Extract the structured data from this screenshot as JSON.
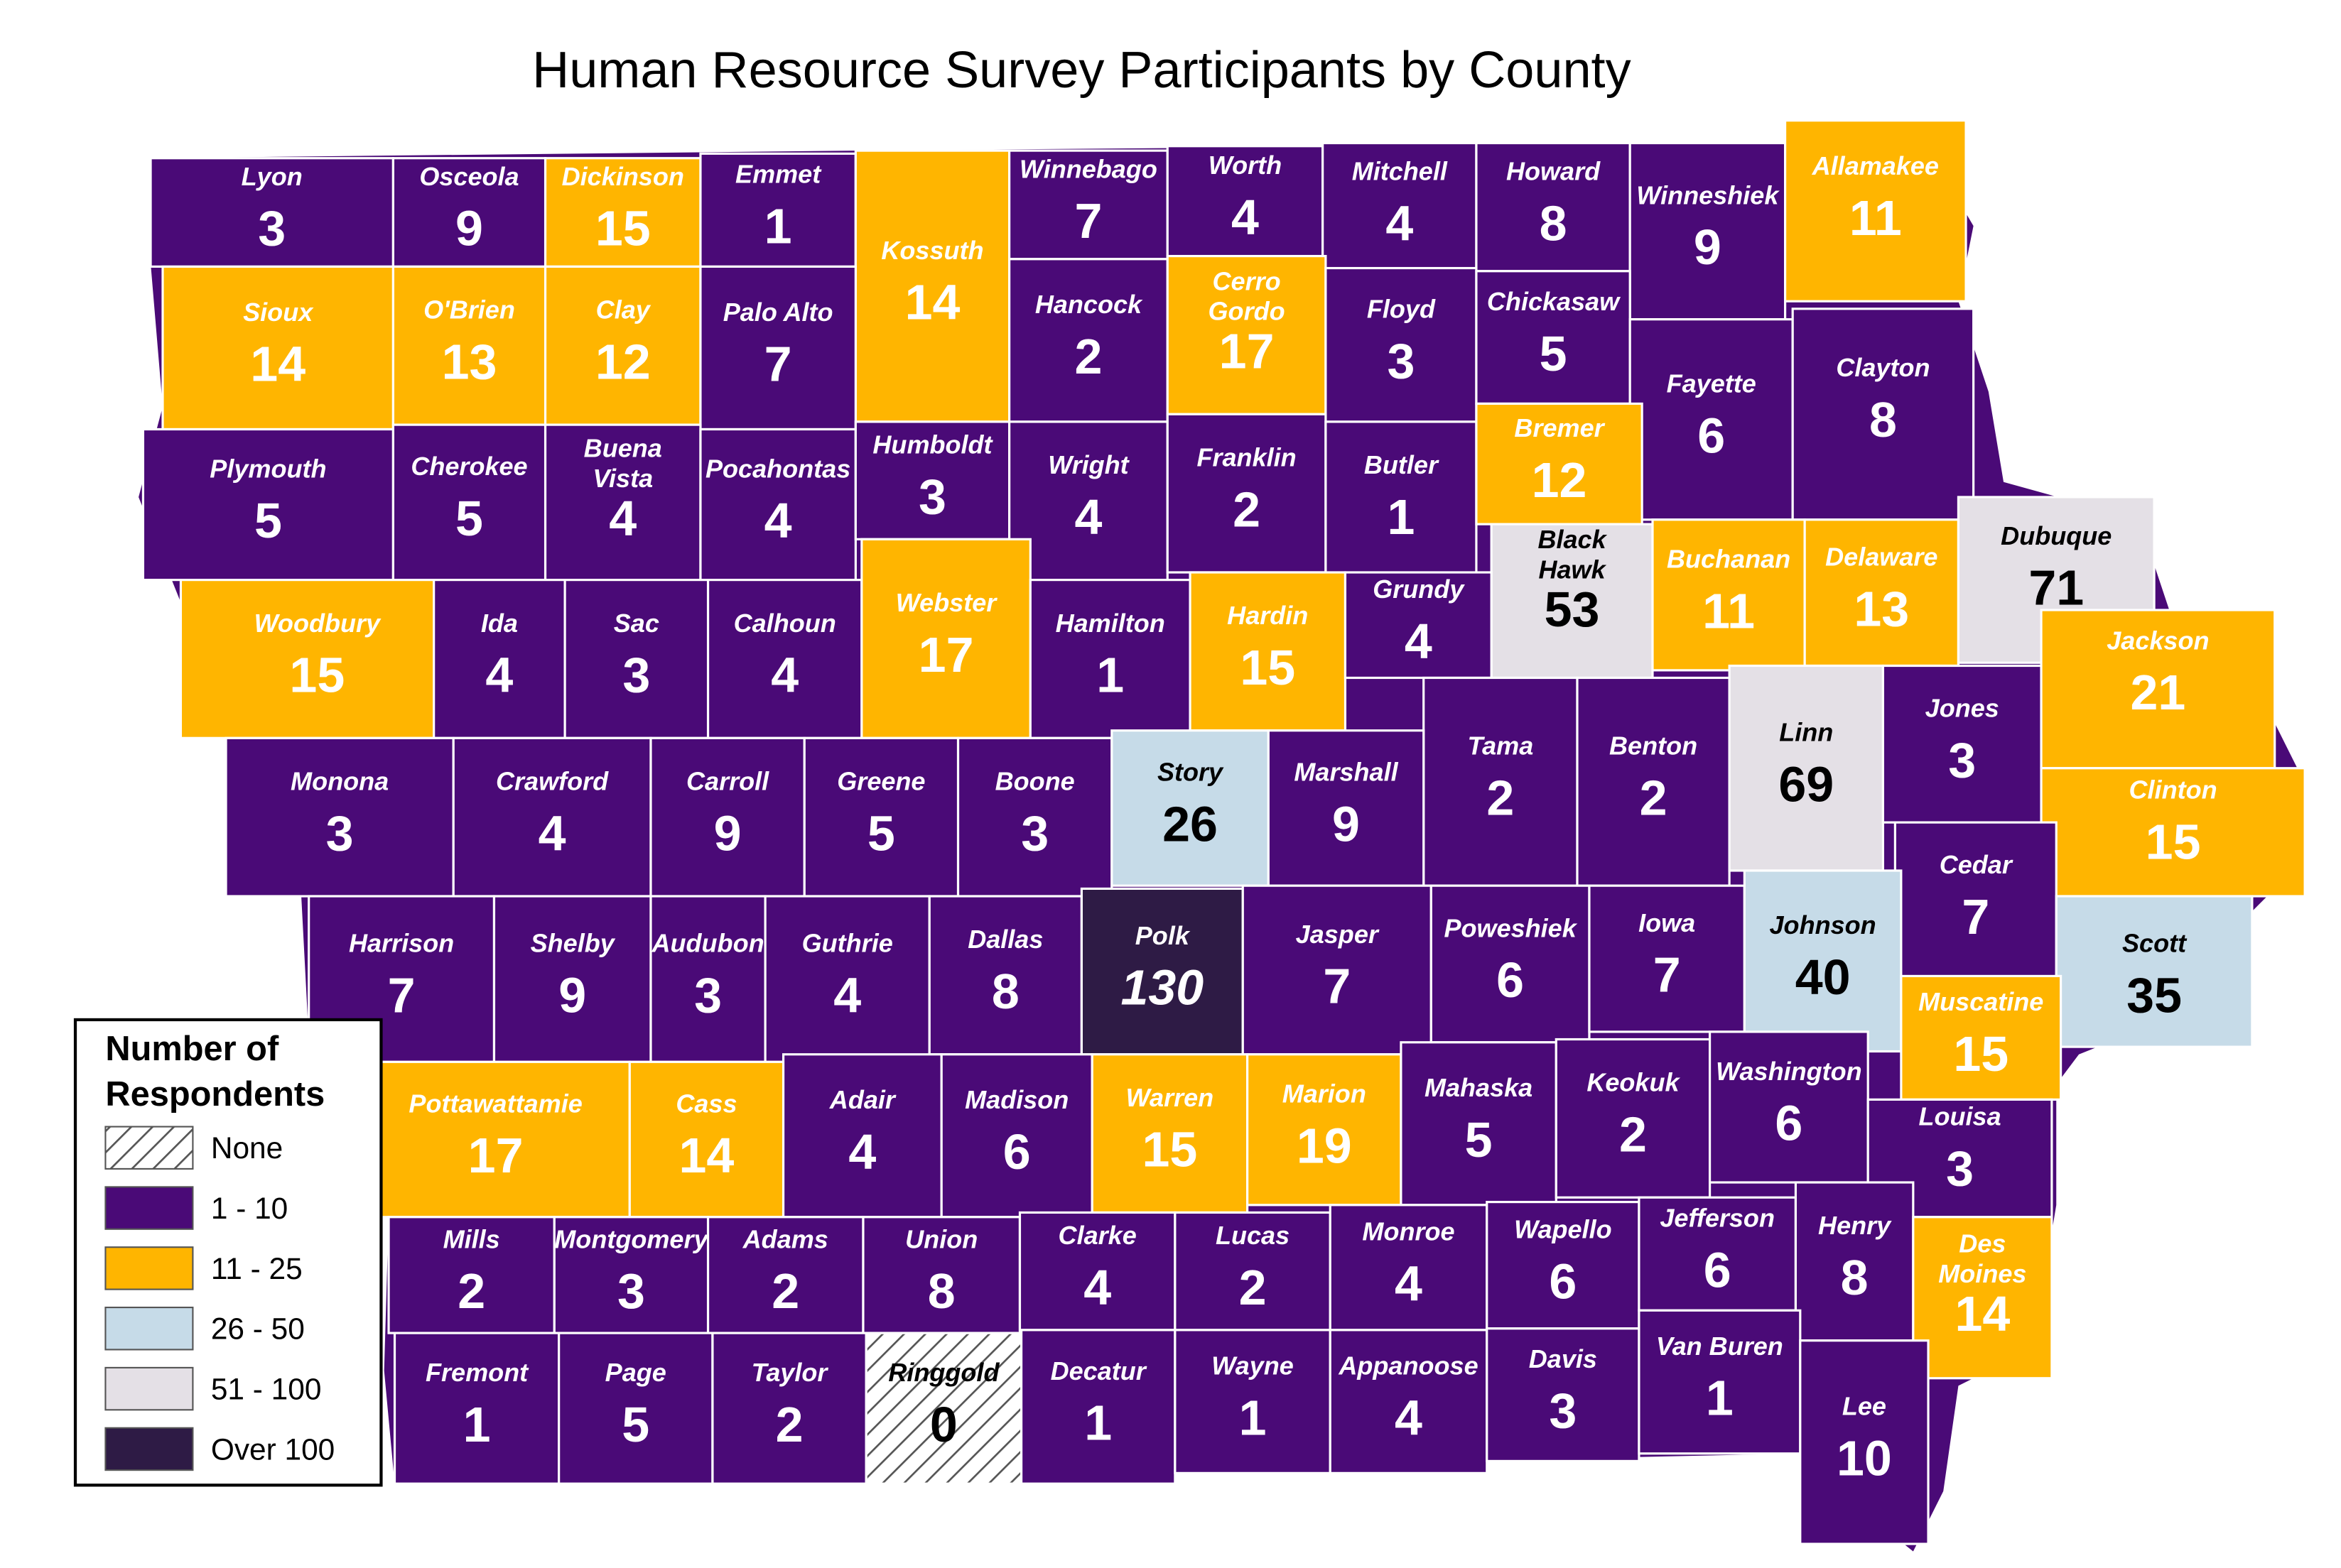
{
  "title": "Human Resource Survey Participants by County",
  "colors": {
    "none": "#ffffff",
    "low": "#4a0a77",
    "mid": "#ffb500",
    "light_blue": "#c6dbe8",
    "light_gray": "#e4e0e6",
    "dark": "#2e1b45",
    "border": "#ffffff",
    "outline": "#3a0a63",
    "text_on_dark": "#ffffff",
    "text_on_light": "#000000"
  },
  "legend": {
    "title_line1": "Number of",
    "title_line2": "Respondents",
    "items": [
      {
        "label": "None",
        "category": "none"
      },
      {
        "label": "1 - 10",
        "category": "low"
      },
      {
        "label": "11 - 25",
        "category": "mid"
      },
      {
        "label": "26 - 50",
        "category": "light_blue"
      },
      {
        "label": "51 - 100",
        "category": "light_gray"
      },
      {
        "label": "Over 100",
        "category": "dark"
      }
    ]
  },
  "counties": [
    {
      "name": "Lyon",
      "count": "3",
      "category": "low"
    },
    {
      "name": "Osceola",
      "count": "9",
      "category": "low"
    },
    {
      "name": "Dickinson",
      "count": "15",
      "category": "mid"
    },
    {
      "name": "Emmet",
      "count": "1",
      "category": "low"
    },
    {
      "name": "Kossuth",
      "count": "14",
      "category": "mid"
    },
    {
      "name": "Winnebago",
      "count": "7",
      "category": "low"
    },
    {
      "name": "Worth",
      "count": "4",
      "category": "low"
    },
    {
      "name": "Mitchell",
      "count": "4",
      "category": "low"
    },
    {
      "name": "Howard",
      "count": "8",
      "category": "low"
    },
    {
      "name": "Winneshiek",
      "count": "9",
      "category": "low"
    },
    {
      "name": "Allamakee",
      "count": "11",
      "category": "mid"
    },
    {
      "name": "Sioux",
      "count": "14",
      "category": "mid"
    },
    {
      "name": "O'Brien",
      "count": "13",
      "category": "mid"
    },
    {
      "name": "Clay",
      "count": "12",
      "category": "mid"
    },
    {
      "name": "Palo Alto",
      "count": "7",
      "category": "low"
    },
    {
      "name": "Hancock",
      "count": "2",
      "category": "low"
    },
    {
      "name": "Cerro Gordo",
      "name2": "Gordo",
      "name1": "Cerro",
      "count": "17",
      "category": "mid"
    },
    {
      "name": "Floyd",
      "count": "3",
      "category": "low"
    },
    {
      "name": "Chickasaw",
      "count": "5",
      "category": "low"
    },
    {
      "name": "Fayette",
      "count": "6",
      "category": "low"
    },
    {
      "name": "Clayton",
      "count": "8",
      "category": "low"
    },
    {
      "name": "Plymouth",
      "count": "5",
      "category": "low"
    },
    {
      "name": "Cherokee",
      "count": "5",
      "category": "low"
    },
    {
      "name": "Buena Vista",
      "name1": "Buena",
      "name2": "Vista",
      "count": "4",
      "category": "low"
    },
    {
      "name": "Pocahontas",
      "count": "4",
      "category": "low"
    },
    {
      "name": "Humboldt",
      "count": "3",
      "category": "low"
    },
    {
      "name": "Wright",
      "count": "4",
      "category": "low"
    },
    {
      "name": "Franklin",
      "count": "2",
      "category": "low"
    },
    {
      "name": "Butler",
      "count": "1",
      "category": "low"
    },
    {
      "name": "Bremer",
      "count": "12",
      "category": "mid"
    },
    {
      "name": "Black Hawk",
      "name1": "Black",
      "name2": "Hawk",
      "count": "53",
      "category": "light_gray"
    },
    {
      "name": "Buchanan",
      "count": "11",
      "category": "mid"
    },
    {
      "name": "Delaware",
      "count": "13",
      "category": "mid"
    },
    {
      "name": "Dubuque",
      "count": "71",
      "category": "light_gray"
    },
    {
      "name": "Woodbury",
      "count": "15",
      "category": "mid"
    },
    {
      "name": "Ida",
      "count": "4",
      "category": "low"
    },
    {
      "name": "Sac",
      "count": "3",
      "category": "low"
    },
    {
      "name": "Calhoun",
      "count": "4",
      "category": "low"
    },
    {
      "name": "Webster",
      "count": "17",
      "category": "mid"
    },
    {
      "name": "Hamilton",
      "count": "1",
      "category": "low"
    },
    {
      "name": "Hardin",
      "count": "15",
      "category": "mid"
    },
    {
      "name": "Grundy",
      "count": "4",
      "category": "low"
    },
    {
      "name": "Tama",
      "count": "2",
      "category": "low"
    },
    {
      "name": "Benton",
      "count": "2",
      "category": "low"
    },
    {
      "name": "Linn",
      "count": "69",
      "category": "light_gray"
    },
    {
      "name": "Jones",
      "count": "3",
      "category": "low"
    },
    {
      "name": "Jackson",
      "count": "21",
      "category": "mid"
    },
    {
      "name": "Monona",
      "count": "3",
      "category": "low"
    },
    {
      "name": "Crawford",
      "count": "4",
      "category": "low"
    },
    {
      "name": "Carroll",
      "count": "9",
      "category": "low"
    },
    {
      "name": "Greene",
      "count": "5",
      "category": "low"
    },
    {
      "name": "Boone",
      "count": "3",
      "category": "low"
    },
    {
      "name": "Story",
      "count": "26",
      "category": "light_blue"
    },
    {
      "name": "Marshall",
      "count": "9",
      "category": "low"
    },
    {
      "name": "Clinton",
      "count": "15",
      "category": "mid"
    },
    {
      "name": "Cedar",
      "count": "7",
      "category": "low"
    },
    {
      "name": "Harrison",
      "count": "7",
      "category": "low"
    },
    {
      "name": "Shelby",
      "count": "9",
      "category": "low"
    },
    {
      "name": "Audubon",
      "count": "3",
      "category": "low"
    },
    {
      "name": "Guthrie",
      "count": "4",
      "category": "low"
    },
    {
      "name": "Dallas",
      "count": "8",
      "category": "low"
    },
    {
      "name": "Polk",
      "count": "130",
      "category": "dark"
    },
    {
      "name": "Jasper",
      "count": "7",
      "category": "low"
    },
    {
      "name": "Poweshiek",
      "count": "6",
      "category": "low"
    },
    {
      "name": "Iowa",
      "count": "7",
      "category": "low"
    },
    {
      "name": "Johnson",
      "count": "40",
      "category": "light_blue"
    },
    {
      "name": "Scott",
      "count": "35",
      "category": "light_blue"
    },
    {
      "name": "Muscatine",
      "count": "15",
      "category": "mid"
    },
    {
      "name": "Pottawattamie",
      "count": "17",
      "category": "mid"
    },
    {
      "name": "Cass",
      "count": "14",
      "category": "mid"
    },
    {
      "name": "Adair",
      "count": "4",
      "category": "low"
    },
    {
      "name": "Madison",
      "count": "6",
      "category": "low"
    },
    {
      "name": "Warren",
      "count": "15",
      "category": "mid"
    },
    {
      "name": "Marion",
      "count": "19",
      "category": "mid"
    },
    {
      "name": "Mahaska",
      "count": "5",
      "category": "low"
    },
    {
      "name": "Keokuk",
      "count": "2",
      "category": "low"
    },
    {
      "name": "Washington",
      "count": "6",
      "category": "low"
    },
    {
      "name": "Louisa",
      "count": "3",
      "category": "low"
    },
    {
      "name": "Mills",
      "count": "2",
      "category": "low"
    },
    {
      "name": "Montgomery",
      "count": "3",
      "category": "low"
    },
    {
      "name": "Adams",
      "count": "2",
      "category": "low"
    },
    {
      "name": "Union",
      "count": "8",
      "category": "low"
    },
    {
      "name": "Clarke",
      "count": "4",
      "category": "low"
    },
    {
      "name": "Lucas",
      "count": "2",
      "category": "low"
    },
    {
      "name": "Monroe",
      "count": "4",
      "category": "low"
    },
    {
      "name": "Wapello",
      "count": "6",
      "category": "low"
    },
    {
      "name": "Jefferson",
      "count": "6",
      "category": "low"
    },
    {
      "name": "Henry",
      "count": "8",
      "category": "low"
    },
    {
      "name": "Des Moines",
      "name1": "Des",
      "name2": "Moines",
      "count": "14",
      "category": "mid"
    },
    {
      "name": "Fremont",
      "count": "1",
      "category": "low"
    },
    {
      "name": "Page",
      "count": "5",
      "category": "low"
    },
    {
      "name": "Taylor",
      "count": "2",
      "category": "low"
    },
    {
      "name": "Ringgold",
      "count": "0",
      "category": "none"
    },
    {
      "name": "Decatur",
      "count": "1",
      "category": "low"
    },
    {
      "name": "Wayne",
      "count": "1",
      "category": "low"
    },
    {
      "name": "Appanoose",
      "count": "4",
      "category": "low"
    },
    {
      "name": "Davis",
      "count": "3",
      "category": "low"
    },
    {
      "name": "Van Buren",
      "count": "1",
      "category": "low"
    },
    {
      "name": "Lee",
      "count": "10",
      "category": "low"
    }
  ]
}
